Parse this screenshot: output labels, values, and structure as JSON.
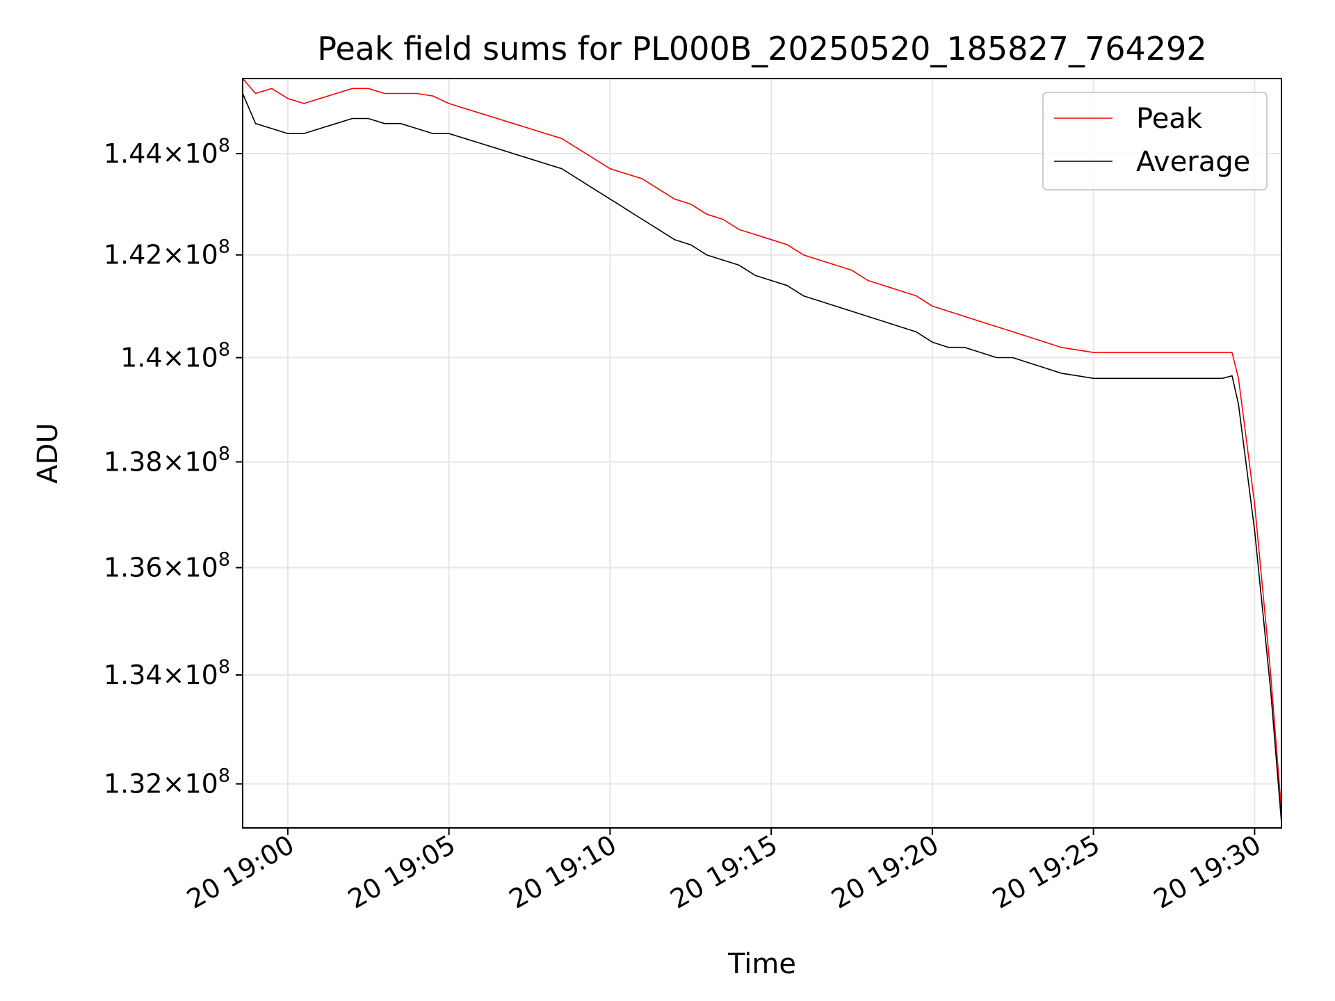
{
  "chart_data": {
    "type": "line",
    "title": "Peak field sums for PL000B_20250520_185827_764292",
    "xlabel": "Time",
    "ylabel": "ADU",
    "y_scale": "log",
    "grid": true,
    "legend_position": "top-right",
    "xlim": [
      "2025-05-20 18:58:36",
      "2025-05-20 19:30:50"
    ],
    "ylim": [
      131200000,
      145500000
    ],
    "x_ticks": [
      {
        "value": "2025-05-20 19:00",
        "label": "20 19:00"
      },
      {
        "value": "2025-05-20 19:05",
        "label": "20 19:05"
      },
      {
        "value": "2025-05-20 19:10",
        "label": "20 19:10"
      },
      {
        "value": "2025-05-20 19:15",
        "label": "20 19:15"
      },
      {
        "value": "2025-05-20 19:20",
        "label": "20 19:20"
      },
      {
        "value": "2025-05-20 19:25",
        "label": "20 19:25"
      },
      {
        "value": "2025-05-20 19:30",
        "label": "20 19:30"
      }
    ],
    "y_ticks": [
      {
        "value": 132000000,
        "mantissa": "1.32",
        "exponent": "8"
      },
      {
        "value": 134000000,
        "mantissa": "1.34",
        "exponent": "8"
      },
      {
        "value": 136000000,
        "mantissa": "1.36",
        "exponent": "8"
      },
      {
        "value": 138000000,
        "mantissa": "1.38",
        "exponent": "8"
      },
      {
        "value": 140000000,
        "mantissa": "1.4",
        "exponent": "8"
      },
      {
        "value": 142000000,
        "mantissa": "1.42",
        "exponent": "8"
      },
      {
        "value": 144000000,
        "mantissa": "1.44",
        "exponent": "8"
      }
    ],
    "times": [
      "2025-05-20 18:58:36",
      "2025-05-20 18:59:00",
      "2025-05-20 18:59:30",
      "2025-05-20 19:00:00",
      "2025-05-20 19:00:30",
      "2025-05-20 19:01:00",
      "2025-05-20 19:01:30",
      "2025-05-20 19:02:00",
      "2025-05-20 19:02:30",
      "2025-05-20 19:03:00",
      "2025-05-20 19:03:30",
      "2025-05-20 19:04:00",
      "2025-05-20 19:04:30",
      "2025-05-20 19:05:00",
      "2025-05-20 19:05:30",
      "2025-05-20 19:06:00",
      "2025-05-20 19:06:30",
      "2025-05-20 19:07:00",
      "2025-05-20 19:07:30",
      "2025-05-20 19:08:00",
      "2025-05-20 19:08:30",
      "2025-05-20 19:09:00",
      "2025-05-20 19:09:30",
      "2025-05-20 19:10:00",
      "2025-05-20 19:10:30",
      "2025-05-20 19:11:00",
      "2025-05-20 19:11:30",
      "2025-05-20 19:12:00",
      "2025-05-20 19:12:30",
      "2025-05-20 19:13:00",
      "2025-05-20 19:13:30",
      "2025-05-20 19:14:00",
      "2025-05-20 19:14:30",
      "2025-05-20 19:15:00",
      "2025-05-20 19:15:30",
      "2025-05-20 19:16:00",
      "2025-05-20 19:16:30",
      "2025-05-20 19:17:00",
      "2025-05-20 19:17:30",
      "2025-05-20 19:18:00",
      "2025-05-20 19:18:30",
      "2025-05-20 19:19:00",
      "2025-05-20 19:19:30",
      "2025-05-20 19:20:00",
      "2025-05-20 19:20:30",
      "2025-05-20 19:21:00",
      "2025-05-20 19:21:30",
      "2025-05-20 19:22:00",
      "2025-05-20 19:22:30",
      "2025-05-20 19:23:00",
      "2025-05-20 19:23:30",
      "2025-05-20 19:24:00",
      "2025-05-20 19:24:30",
      "2025-05-20 19:25:00",
      "2025-05-20 19:25:30",
      "2025-05-20 19:26:00",
      "2025-05-20 19:26:30",
      "2025-05-20 19:27:00",
      "2025-05-20 19:27:30",
      "2025-05-20 19:28:00",
      "2025-05-20 19:28:30",
      "2025-05-20 19:29:00",
      "2025-05-20 19:29:18",
      "2025-05-20 19:29:30",
      "2025-05-20 19:30:00",
      "2025-05-20 19:30:30",
      "2025-05-20 19:30:50"
    ],
    "series": [
      {
        "name": "Peak",
        "color": "#ff0000",
        "values": [
          145500000,
          145200000,
          145300000,
          145100000,
          145000000,
          145100000,
          145200000,
          145300000,
          145300000,
          145200000,
          145200000,
          145200000,
          145150000,
          145000000,
          144900000,
          144800000,
          144700000,
          144600000,
          144500000,
          144400000,
          144300000,
          144100000,
          143900000,
          143700000,
          143600000,
          143500000,
          143300000,
          143100000,
          143000000,
          142800000,
          142700000,
          142500000,
          142400000,
          142300000,
          142200000,
          142000000,
          141900000,
          141800000,
          141700000,
          141500000,
          141400000,
          141300000,
          141200000,
          141000000,
          140900000,
          140800000,
          140700000,
          140600000,
          140500000,
          140400000,
          140300000,
          140200000,
          140150000,
          140100000,
          140100000,
          140100000,
          140100000,
          140100000,
          140100000,
          140100000,
          140100000,
          140100000,
          140100000,
          139600000,
          137200000,
          134000000,
          131500000
        ]
      },
      {
        "name": "Average",
        "color": "#000000",
        "values": [
          145200000,
          144600000,
          144500000,
          144400000,
          144400000,
          144500000,
          144600000,
          144700000,
          144700000,
          144600000,
          144600000,
          144500000,
          144400000,
          144400000,
          144300000,
          144200000,
          144100000,
          144000000,
          143900000,
          143800000,
          143700000,
          143500000,
          143300000,
          143100000,
          142900000,
          142700000,
          142500000,
          142300000,
          142200000,
          142000000,
          141900000,
          141800000,
          141600000,
          141500000,
          141400000,
          141200000,
          141100000,
          141000000,
          140900000,
          140800000,
          140700000,
          140600000,
          140500000,
          140300000,
          140200000,
          140200000,
          140100000,
          140000000,
          140000000,
          139900000,
          139800000,
          139700000,
          139650000,
          139600000,
          139600000,
          139600000,
          139600000,
          139600000,
          139600000,
          139600000,
          139600000,
          139600000,
          139650000,
          139100000,
          136700000,
          133700000,
          131300000
        ]
      }
    ]
  }
}
